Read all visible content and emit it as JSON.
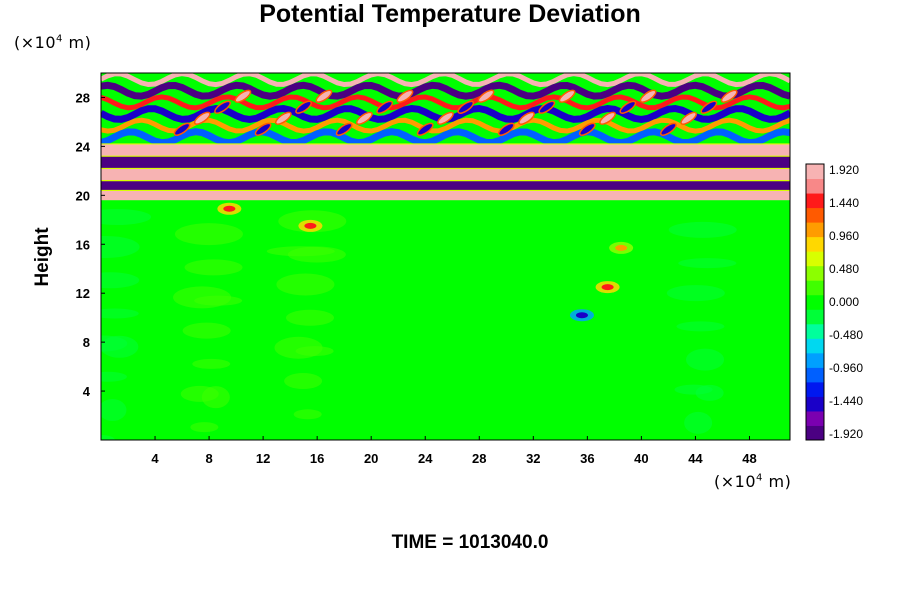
{
  "chart_data": {
    "type": "heatmap",
    "title": "Potential Temperature Deviation",
    "ylabel": "Height",
    "xlabel": "",
    "y_unit": {
      "prefix": "(×10",
      "exp": "4",
      "suffix": " m)"
    },
    "x_unit": {
      "prefix": "(×10",
      "exp": "4",
      "suffix": " m)"
    },
    "xlim": [
      0,
      51
    ],
    "ylim": [
      0,
      30
    ],
    "x_ticks": [
      4,
      8,
      12,
      16,
      20,
      24,
      28,
      32,
      36,
      40,
      44,
      48
    ],
    "y_ticks": [
      4,
      8,
      12,
      16,
      20,
      24,
      28
    ],
    "colorbar": {
      "range": [
        -1.92,
        1.92
      ],
      "labels": [
        "1.920",
        "1.440",
        "0.960",
        "0.480",
        "0.000",
        "-0.480",
        "-0.960",
        "-1.440",
        "-1.920"
      ],
      "colors": [
        "#4b0082",
        "#7a00b0",
        "#1a00c8",
        "#0018f0",
        "#0060ff",
        "#00a0ff",
        "#00d8f0",
        "#00ff9c",
        "#00ff38",
        "#00ff00",
        "#40ff00",
        "#8cff00",
        "#d8ff00",
        "#ffd800",
        "#ff9c00",
        "#ff5a00",
        "#ff1a1a",
        "#f88888",
        "#f7b3b3"
      ]
    },
    "regions": [
      {
        "feature": "upper-wave-layer",
        "y_range": [
          24,
          30
        ],
        "values": "oscillating -1.920 to 1.920"
      },
      {
        "feature": "positive-band",
        "y_range": [
          23.2,
          24.2
        ],
        "value": 1.92
      },
      {
        "feature": "negative-band",
        "y_range": [
          22.2,
          23.2
        ],
        "value": -1.92
      },
      {
        "feature": "positive-band",
        "y_range": [
          21.2,
          22.2
        ],
        "value": 1.92
      },
      {
        "feature": "negative-band",
        "y_range": [
          20.4,
          21.2
        ],
        "value": -1.92
      },
      {
        "feature": "positive-band",
        "y_range": [
          19.6,
          20.4
        ],
        "value": 1.92
      },
      {
        "feature": "background",
        "y_range": [
          0,
          19
        ],
        "value": 0.0
      },
      {
        "feature": "anomaly",
        "x": 9.5,
        "y": 18.9,
        "value": 1.44
      },
      {
        "feature": "anomaly",
        "x": 15.5,
        "y": 17.5,
        "value": 1.44
      },
      {
        "feature": "anomaly",
        "x": 38.5,
        "y": 15.7,
        "value": 0.96
      },
      {
        "feature": "anomaly",
        "x": 37.5,
        "y": 12.5,
        "value": 1.44
      },
      {
        "feature": "anomaly",
        "x": 35.6,
        "y": 10.2,
        "value": -1.44
      }
    ]
  },
  "time_label": "TIME = 1013040.0"
}
